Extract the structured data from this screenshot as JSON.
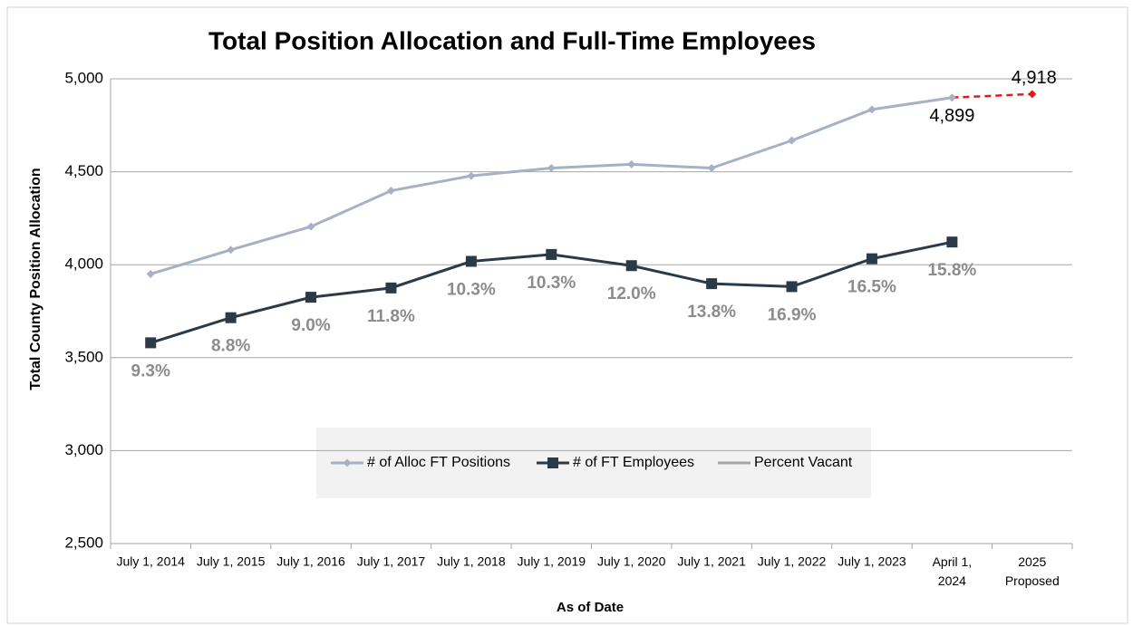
{
  "chart_data": {
    "type": "line",
    "title": "Total Position Allocation and Full-Time Employees",
    "x_label": "As of Date",
    "y_label": "Total County Position Allocation",
    "categories": [
      "July 1, 2014",
      "July 1, 2015",
      "July 1, 2016",
      "July 1, 2017",
      "July 1, 2018",
      "July 1, 2019",
      "July 1, 2020",
      "July 1, 2021",
      "July 1, 2022",
      "July 1, 2023",
      "April 1,\n2024",
      "2025\nProposed"
    ],
    "ylim": [
      2500,
      5000
    ],
    "yticks": [
      {
        "value": 2500,
        "label": "2,500"
      },
      {
        "value": 3000,
        "label": "3,000"
      },
      {
        "value": 3500,
        "label": "3,500"
      },
      {
        "value": 4000,
        "label": "4,000"
      },
      {
        "value": 4500,
        "label": "4,500"
      },
      {
        "value": 5000,
        "label": "5,000"
      }
    ],
    "grid": true,
    "series": [
      {
        "name": "# of Alloc FT Positions",
        "color": "#a6b2c4",
        "marker": "diamond",
        "values": [
          3950,
          4080,
          4205,
          4398,
          4478,
          4520,
          4540,
          4520,
          4668,
          4835,
          4899,
          4918
        ],
        "value_labels": [
          null,
          null,
          null,
          null,
          null,
          null,
          null,
          null,
          null,
          null,
          "4,899",
          "4,918"
        ],
        "dashed_last_segment_color": "#e31a1c"
      },
      {
        "name": "# of FT Employees",
        "color": "#2b3a47",
        "marker": "square",
        "values": [
          3580,
          3715,
          3825,
          3875,
          4018,
          4055,
          3995,
          3898,
          3882,
          4032,
          4122,
          null
        ]
      },
      {
        "name": "Percent Vacant",
        "color": "#a6a6a6",
        "marker": "none",
        "values": [
          9.3,
          8.8,
          9.0,
          11.8,
          10.3,
          10.3,
          12.0,
          13.8,
          16.9,
          16.5,
          15.8,
          null
        ],
        "value_labels": [
          "9.3%",
          "8.8%",
          "9.0%",
          "11.8%",
          "10.3%",
          "10.3%",
          "12.0%",
          "13.8%",
          "16.9%",
          "16.5%",
          "15.8%",
          null
        ],
        "label_color": "#8c8c8c"
      }
    ]
  }
}
